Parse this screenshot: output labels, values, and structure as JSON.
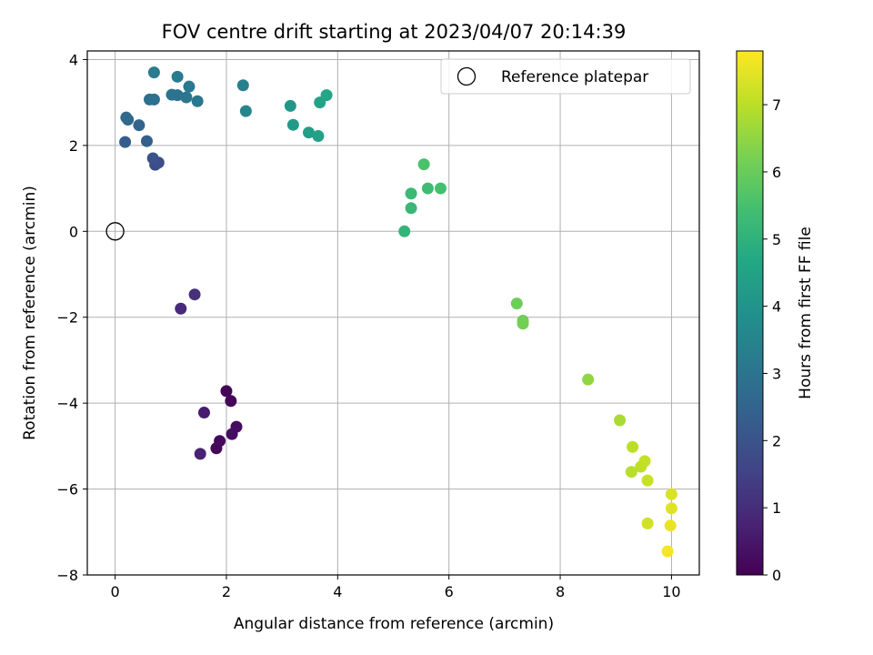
{
  "chart_data": {
    "type": "scatter",
    "title": "FOV centre drift starting at 2023/04/07 20:14:39",
    "xlabel": "Angular distance from reference (arcmin)",
    "ylabel": "Rotation from reference (arcmin)",
    "colorbar_label": "Hours from first FF file",
    "xlim": [
      -0.5,
      10.5
    ],
    "ylim": [
      -8,
      4.2
    ],
    "xticks": [
      0,
      2,
      4,
      6,
      8,
      10
    ],
    "yticks": [
      -8,
      -6,
      -4,
      -2,
      0,
      2,
      4
    ],
    "colorbar_range": [
      0,
      7.8
    ],
    "colorbar_ticks": [
      0,
      1,
      2,
      3,
      4,
      5,
      6,
      7
    ],
    "colormap": "viridis",
    "grid": true,
    "legend_position": "top-right",
    "reference": {
      "label": "Reference platepar",
      "x": 0,
      "y": 0
    },
    "points": [
      {
        "x": 2.0,
        "y": -3.72,
        "c": 0.05
      },
      {
        "x": 2.08,
        "y": -3.95,
        "c": 0.1
      },
      {
        "x": 1.82,
        "y": -5.05,
        "c": 0.15
      },
      {
        "x": 1.88,
        "y": -4.88,
        "c": 0.2
      },
      {
        "x": 2.18,
        "y": -4.55,
        "c": 0.25
      },
      {
        "x": 2.1,
        "y": -4.72,
        "c": 0.3
      },
      {
        "x": 1.6,
        "y": -4.22,
        "c": 0.6
      },
      {
        "x": 1.53,
        "y": -5.18,
        "c": 0.75
      },
      {
        "x": 1.18,
        "y": -1.8,
        "c": 0.95
      },
      {
        "x": 1.43,
        "y": -1.47,
        "c": 1.05
      },
      {
        "x": 0.72,
        "y": 1.55,
        "c": 1.75
      },
      {
        "x": 0.78,
        "y": 1.6,
        "c": 1.85
      },
      {
        "x": 0.68,
        "y": 1.7,
        "c": 1.95
      },
      {
        "x": 0.18,
        "y": 2.08,
        "c": 2.25
      },
      {
        "x": 0.57,
        "y": 2.1,
        "c": 2.35
      },
      {
        "x": 0.43,
        "y": 2.47,
        "c": 2.5
      },
      {
        "x": 0.23,
        "y": 2.6,
        "c": 2.6
      },
      {
        "x": 0.2,
        "y": 2.65,
        "c": 2.7
      },
      {
        "x": 0.62,
        "y": 3.07,
        "c": 2.85
      },
      {
        "x": 0.7,
        "y": 3.07,
        "c": 2.9
      },
      {
        "x": 1.02,
        "y": 3.18,
        "c": 2.95
      },
      {
        "x": 1.12,
        "y": 3.17,
        "c": 3.0
      },
      {
        "x": 1.28,
        "y": 3.12,
        "c": 3.05
      },
      {
        "x": 1.48,
        "y": 3.03,
        "c": 3.1
      },
      {
        "x": 1.33,
        "y": 3.37,
        "c": 3.15
      },
      {
        "x": 1.12,
        "y": 3.6,
        "c": 3.2
      },
      {
        "x": 0.7,
        "y": 3.7,
        "c": 3.25
      },
      {
        "x": 2.3,
        "y": 3.4,
        "c": 3.4
      },
      {
        "x": 2.35,
        "y": 2.8,
        "c": 3.55
      },
      {
        "x": 3.15,
        "y": 2.92,
        "c": 4.1
      },
      {
        "x": 3.2,
        "y": 2.48,
        "c": 4.2
      },
      {
        "x": 3.48,
        "y": 2.3,
        "c": 4.35
      },
      {
        "x": 3.65,
        "y": 2.22,
        "c": 4.45
      },
      {
        "x": 3.68,
        "y": 3.0,
        "c": 4.5
      },
      {
        "x": 3.8,
        "y": 3.17,
        "c": 4.6
      },
      {
        "x": 5.2,
        "y": 0.0,
        "c": 5.1
      },
      {
        "x": 5.32,
        "y": 0.54,
        "c": 5.2
      },
      {
        "x": 5.32,
        "y": 0.88,
        "c": 5.25
      },
      {
        "x": 5.62,
        "y": 1.0,
        "c": 5.35
      },
      {
        "x": 5.85,
        "y": 1.0,
        "c": 5.45
      },
      {
        "x": 5.55,
        "y": 1.56,
        "c": 5.55
      },
      {
        "x": 7.22,
        "y": -1.68,
        "c": 6.05
      },
      {
        "x": 7.33,
        "y": -2.08,
        "c": 6.1
      },
      {
        "x": 7.33,
        "y": -2.15,
        "c": 6.15
      },
      {
        "x": 8.5,
        "y": -3.45,
        "c": 6.5
      },
      {
        "x": 9.07,
        "y": -4.4,
        "c": 6.8
      },
      {
        "x": 9.28,
        "y": -5.6,
        "c": 6.95
      },
      {
        "x": 9.3,
        "y": -5.02,
        "c": 7.0
      },
      {
        "x": 9.45,
        "y": -5.48,
        "c": 7.05
      },
      {
        "x": 9.52,
        "y": -5.35,
        "c": 7.1
      },
      {
        "x": 9.57,
        "y": -5.8,
        "c": 7.15
      },
      {
        "x": 9.57,
        "y": -6.8,
        "c": 7.25
      },
      {
        "x": 10.0,
        "y": -6.12,
        "c": 7.35
      },
      {
        "x": 10.0,
        "y": -6.45,
        "c": 7.45
      },
      {
        "x": 9.98,
        "y": -6.85,
        "c": 7.55
      },
      {
        "x": 9.93,
        "y": -7.45,
        "c": 7.7
      }
    ]
  }
}
